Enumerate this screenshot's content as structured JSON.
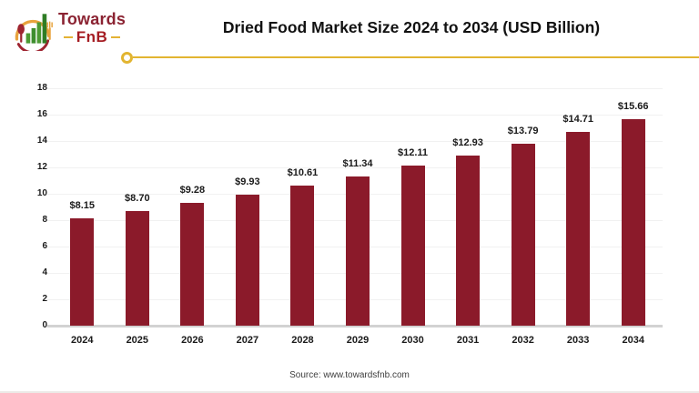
{
  "logo": {
    "title": "Towards",
    "subtitle": "FnB"
  },
  "chart_data": {
    "type": "bar",
    "title": "Dried Food Market Size 2024 to 2034 (USD Billion)",
    "categories": [
      "2024",
      "2025",
      "2026",
      "2027",
      "2028",
      "2029",
      "2030",
      "2031",
      "2032",
      "2033",
      "2034"
    ],
    "values": [
      8.15,
      8.7,
      9.28,
      9.93,
      10.61,
      11.34,
      12.11,
      12.93,
      13.79,
      14.71,
      15.66
    ],
    "labels": [
      "$8.15",
      "$8.70",
      "$9.28",
      "$9.93",
      "$10.61",
      "$11.34",
      "$12.11",
      "$12.93",
      "$13.79",
      "$14.71",
      "$15.66"
    ],
    "xlabel": "",
    "ylabel": "",
    "ylim": [
      0,
      18
    ],
    "ytick_step": 2,
    "grid": true,
    "legend": "none",
    "bar_color": "#8B1A2A"
  },
  "colors": {
    "accent_yellow": "#E2B531",
    "maroon": "#8B2332",
    "bar": "#8B1A2A",
    "grid": "#f1f1f1",
    "axis": "#d2d2d2"
  },
  "source": {
    "label": "Source: www.towardsfnb.com"
  }
}
